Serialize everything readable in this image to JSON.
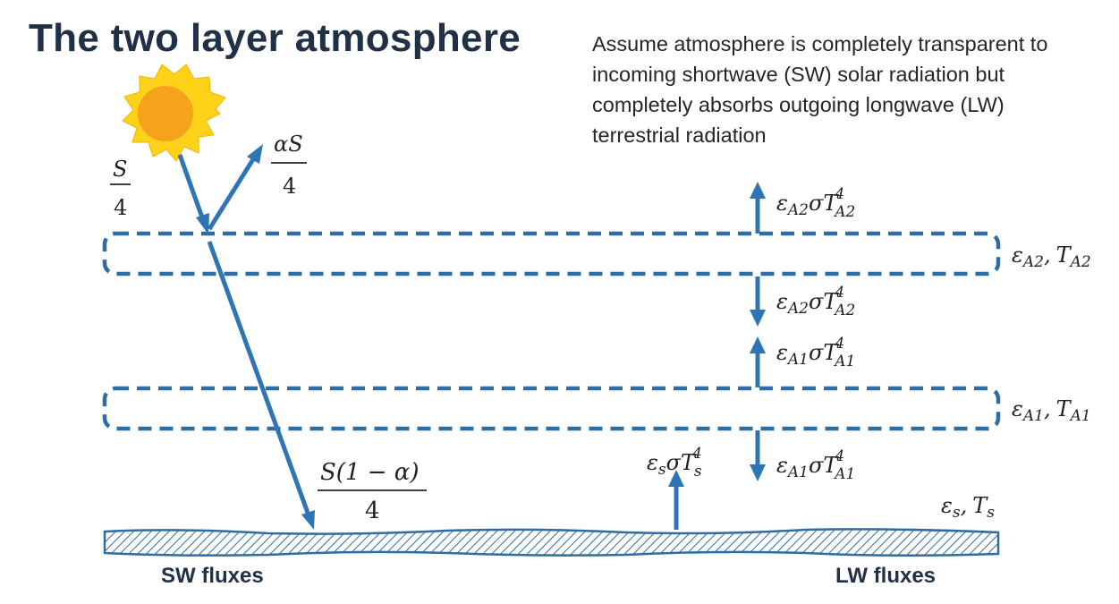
{
  "title": "The two layer atmosphere",
  "note_lines": [
    "Assume atmosphere is completely transparent to",
    "incoming shortwave (SW) solar radiation but",
    "completely absorbs outgoing longwave (LW)",
    "terrestrial radiation"
  ],
  "labels": {
    "sw_fluxes": "SW fluxes",
    "lw_fluxes": "LW fluxes"
  },
  "math": {
    "incoming_num": "S",
    "incoming_den": "4",
    "reflected_num": "αS",
    "reflected_den": "4",
    "absorbed_num": "S(1 − α)",
    "absorbed_den": "4",
    "eps": "ε",
    "sigma": "σ",
    "T": "T",
    "pow4": "4",
    "sub_A2": "A2",
    "sub_A1": "A1",
    "sub_s": "s",
    "comma": ","
  },
  "colors": {
    "arrow": "#2f75b5",
    "layer": "#2e6da4",
    "title": "#1f3047",
    "sun_outer": "#ffd21a",
    "sun_inner": "#f7a21b"
  }
}
